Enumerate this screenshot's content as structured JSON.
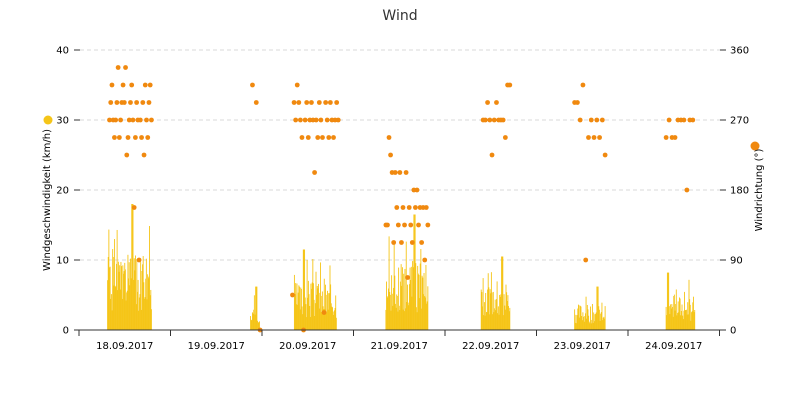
{
  "chart_data": {
    "type": "bar+scatter",
    "title": "Wind",
    "xlabel": "",
    "y_left_label": "Windgeschwindigkeit (km/h)",
    "y_right_label": "Windrichtung (°)",
    "y_left_lim": [
      0,
      40
    ],
    "y_left_ticks": [
      "0",
      "10",
      "20",
      "30",
      "40"
    ],
    "y_right_lim": [
      0,
      360
    ],
    "y_right_ticks": [
      "0",
      "90",
      "180",
      "270",
      "360"
    ],
    "x_ticks": [
      "18.09.2017",
      "19.09.2017",
      "20.09.2017",
      "21.09.2017",
      "22.09.2017",
      "23.09.2017",
      "24.09.2017"
    ],
    "grid": true,
    "colors": {
      "speed": "#f5c518",
      "direction": "#f0890f"
    },
    "series": [
      {
        "kind": "speed",
        "values": [
          {
            "day": "18.09.2017",
            "hour_start": 7.5,
            "hour_end": 19,
            "max": 18.0,
            "peak_hour": 14,
            "seed": 1
          },
          {
            "day": "19.09.2017",
            "hour_start": 21,
            "hour_end": 23.5,
            "max": 6.2,
            "peak_hour": 22.5,
            "seed": 2
          },
          {
            "day": "20.09.2017",
            "hour_start": 8.5,
            "hour_end": 19.5,
            "max": 11.5,
            "peak_hour": 11,
            "seed": 3
          },
          {
            "day": "21.09.2017",
            "hour_start": 8.5,
            "hour_end": 19.5,
            "max": 16.5,
            "peak_hour": 16,
            "seed": 4
          },
          {
            "day": "22.09.2017",
            "hour_start": 9.5,
            "hour_end": 17,
            "max": 10.5,
            "peak_hour": 15,
            "seed": 5
          },
          {
            "day": "23.09.2017",
            "hour_start": 10,
            "hour_end": 18,
            "max": 6.2,
            "peak_hour": 16,
            "seed": 6
          },
          {
            "day": "24.09.2017",
            "hour_start": 10,
            "hour_end": 17.5,
            "max": 8.2,
            "peak_hour": 10.5,
            "seed": 7
          }
        ]
      },
      {
        "kind": "direction",
        "values": [
          {
            "day": "18.09.2017",
            "hour_start": 8,
            "hour_end": 19,
            "angles": [
              270,
              292.5,
              315,
              270,
              247.5,
              270,
              292.5,
              337.5,
              247.5,
              270,
              292.5,
              315,
              292.5,
              337.5,
              225,
              247.5,
              270,
              292.5,
              315,
              270,
              157.5,
              247.5,
              292.5,
              270,
              90,
              270,
              247.5,
              292.5,
              225,
              315,
              270,
              247.5,
              292.5,
              315,
              270
            ]
          },
          {
            "day": "19.09.2017",
            "hour_start": 21.5,
            "hour_end": 23.5,
            "angles": [
              315,
              292.5,
              0
            ]
          },
          {
            "day": "20.09.2017",
            "hour_start": 8,
            "hour_end": 20,
            "angles": [
              45,
              292.5,
              270,
              315,
              292.5,
              270,
              247.5,
              0,
              270,
              292.5,
              247.5,
              270,
              292.5,
              270,
              202.5,
              270,
              247.5,
              292.5,
              270,
              247.5,
              22.5,
              292.5,
              270,
              247.5,
              292.5,
              270,
              247.5,
              270,
              292.5,
              270
            ]
          },
          {
            "day": "21.09.2017",
            "hour_start": 8.5,
            "hour_end": 19.5,
            "angles": [
              135,
              135,
              247.5,
              225,
              202.5,
              112.5,
              202.5,
              157.5,
              135,
              202.5,
              112.5,
              157.5,
              135,
              202.5,
              67.5,
              157.5,
              135,
              112.5,
              180,
              157.5,
              180,
              135,
              157.5,
              112.5,
              157.5,
              90,
              157.5,
              135
            ]
          },
          {
            "day": "22.09.2017",
            "hour_start": 10,
            "hour_end": 17,
            "angles": [
              270,
              270,
              292.5,
              270,
              225,
              270,
              292.5,
              270,
              270,
              270,
              247.5,
              315,
              315
            ]
          },
          {
            "day": "23.09.2017",
            "hour_start": 10,
            "hour_end": 18,
            "angles": [
              292.5,
              292.5,
              270,
              315,
              90,
              247.5,
              270,
              247.5,
              270,
              247.5,
              270,
              225
            ]
          },
          {
            "day": "24.09.2017",
            "hour_start": 10,
            "hour_end": 17,
            "angles": [
              247.5,
              270,
              247.5,
              247.5,
              270,
              270,
              270,
              180,
              270,
              270
            ]
          }
        ]
      }
    ]
  }
}
